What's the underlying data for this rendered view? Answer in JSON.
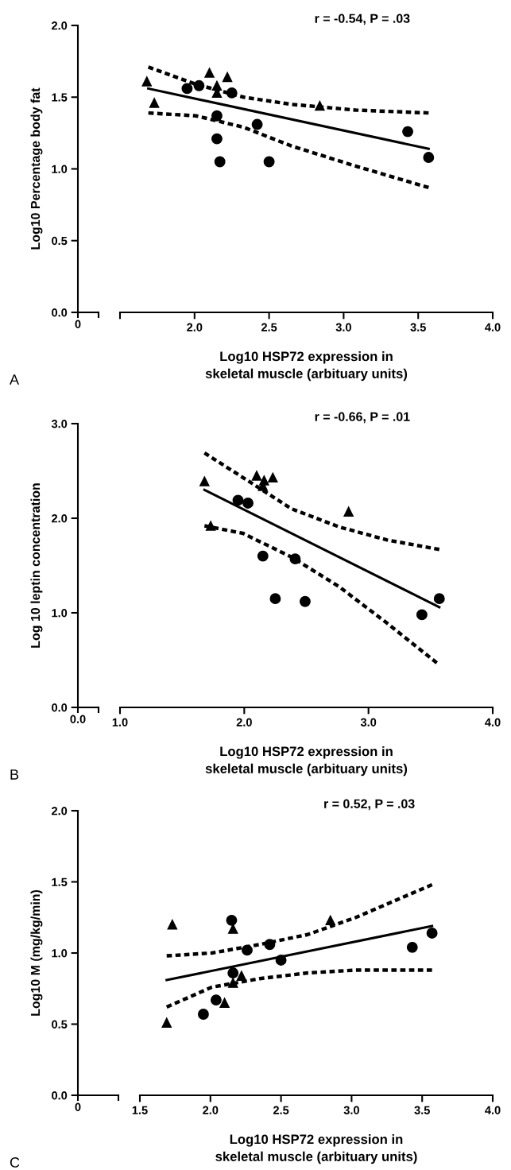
{
  "chart_data": [
    {
      "type": "scatter",
      "ylabel": "Log10 Percentage body fat",
      "xlabel": "Log10 HSP72 expression in\nskeletal muscle (arbituary units)",
      "annotations": [
        "r = -0.54, P = .03",
        "A",
        "0"
      ],
      "xlim": [
        1.5,
        4.0
      ],
      "xticks": [
        {
          "value": 1.5,
          "label": null
        },
        {
          "value": 2.0,
          "label": "2.0"
        },
        {
          "value": 2.5,
          "label": "2.5"
        },
        {
          "value": 3.0,
          "label": "3.0"
        },
        {
          "value": 3.5,
          "label": "3.5"
        },
        {
          "value": 4.0,
          "label": "4.0"
        }
      ],
      "ylim": [
        0,
        2.0
      ],
      "yticks": [
        {
          "value": 0,
          "label": "0.0"
        },
        {
          "value": 0.5,
          "label": "0.5"
        },
        {
          "value": 1.0,
          "label": "1.0"
        },
        {
          "value": 1.5,
          "label": "1.5"
        },
        {
          "value": 2.0,
          "label": "2.0"
        }
      ],
      "grid": false,
      "series": [
        {
          "marker": "triangle",
          "color": "#000000",
          "x": [
            1.68,
            1.73,
            2.1,
            2.22,
            2.15,
            2.15,
            2.84
          ],
          "values": [
            1.61,
            1.46,
            1.67,
            1.64,
            1.58,
            1.53,
            1.44
          ]
        },
        {
          "marker": "circle",
          "color": "#000000",
          "x": [
            1.95,
            2.03,
            2.25,
            2.15,
            2.15,
            2.17,
            2.42,
            2.5,
            3.43,
            3.57
          ],
          "values": [
            1.56,
            1.58,
            1.53,
            1.37,
            1.21,
            1.05,
            1.31,
            1.05,
            1.26,
            1.08
          ]
        },
        {
          "type": "line",
          "line_style": "solid",
          "color": "#000000",
          "x": [
            1.69,
            3.57
          ],
          "values": [
            1.56,
            1.14
          ]
        },
        {
          "type": "line",
          "line_style": "dashed",
          "color": "#000000",
          "x": [
            1.69,
            2.01,
            2.33,
            2.65,
            3.08,
            3.57
          ],
          "values": [
            1.71,
            1.59,
            1.5,
            1.45,
            1.41,
            1.39
          ]
        },
        {
          "type": "line",
          "line_style": "dashed",
          "color": "#000000",
          "x": [
            1.69,
            2.01,
            2.33,
            2.65,
            3.08,
            3.57
          ],
          "values": [
            1.39,
            1.37,
            1.29,
            1.16,
            1.02,
            0.87
          ]
        }
      ]
    },
    {
      "type": "scatter",
      "ylabel": "Log 10 leptin concentration",
      "xlabel": "Log10 HSP72 expression in\nskeletal muscle (arbituary units)",
      "annotations": [
        "r = -0.66, P = .01",
        "B",
        "0.0"
      ],
      "xlim": [
        1.0,
        4.0
      ],
      "xticks": [
        {
          "value": 1.0,
          "label": "1.0"
        },
        {
          "value": 2.0,
          "label": "2.0"
        },
        {
          "value": 3.0,
          "label": "3.0"
        },
        {
          "value": 4.0,
          "label": "4.0"
        }
      ],
      "ylim": [
        0,
        3.0
      ],
      "yticks": [
        {
          "value": 0,
          "label": "0.0"
        },
        {
          "value": 1.0,
          "label": "1.0"
        },
        {
          "value": 2.0,
          "label": "2.0"
        },
        {
          "value": 3.0,
          "label": "3.0"
        }
      ],
      "grid": false,
      "series": [
        {
          "marker": "triangle",
          "color": "#000000",
          "x": [
            1.68,
            1.73,
            2.1,
            2.16,
            2.15,
            2.23,
            2.84
          ],
          "values": [
            2.39,
            1.92,
            2.45,
            2.4,
            2.34,
            2.43,
            2.07
          ]
        },
        {
          "marker": "circle",
          "color": "#000000",
          "x": [
            1.95,
            2.03,
            2.15,
            2.41,
            2.25,
            2.49,
            3.43,
            3.57
          ],
          "values": [
            2.19,
            2.16,
            1.6,
            1.57,
            1.15,
            1.12,
            0.98,
            1.15
          ]
        },
        {
          "type": "line",
          "line_style": "solid",
          "color": "#000000",
          "x": [
            1.68,
            3.57
          ],
          "values": [
            2.3,
            1.06
          ]
        },
        {
          "type": "line",
          "line_style": "dashed",
          "color": "#000000",
          "x": [
            1.68,
            1.99,
            2.38,
            2.76,
            3.15,
            3.57
          ],
          "values": [
            2.69,
            2.43,
            2.1,
            1.91,
            1.77,
            1.67
          ]
        },
        {
          "type": "line",
          "line_style": "dashed",
          "color": "#000000",
          "x": [
            1.68,
            1.99,
            2.38,
            2.76,
            3.15,
            3.55
          ],
          "values": [
            1.92,
            1.84,
            1.59,
            1.28,
            0.89,
            0.47
          ]
        }
      ]
    },
    {
      "type": "scatter",
      "ylabel": "Log10 M (mg/kg/min)",
      "xlabel": "Log10 HSP72 expression in\nskeletal muscle (arbituary units)",
      "annotations": [
        "r = 0.52, P = .03",
        "C",
        "0"
      ],
      "xlim": [
        1.5,
        4.0
      ],
      "xticks": [
        {
          "value": 1.5,
          "label": "1.5"
        },
        {
          "value": 2.0,
          "label": "2.0"
        },
        {
          "value": 2.5,
          "label": "2.5"
        },
        {
          "value": 3.0,
          "label": "3.0"
        },
        {
          "value": 3.5,
          "label": "3.5"
        },
        {
          "value": 4.0,
          "label": "4.0"
        }
      ],
      "ylim": [
        0,
        2.0
      ],
      "yticks": [
        {
          "value": 0,
          "label": "0.0"
        },
        {
          "value": 0.5,
          "label": "0.5"
        },
        {
          "value": 1.0,
          "label": "1.0"
        },
        {
          "value": 1.5,
          "label": "1.5"
        },
        {
          "value": 2.0,
          "label": "2.0"
        }
      ],
      "grid": false,
      "series": [
        {
          "marker": "triangle",
          "color": "#000000",
          "x": [
            1.73,
            1.69,
            2.16,
            2.1,
            2.16,
            2.22,
            2.85
          ],
          "values": [
            1.2,
            0.51,
            1.17,
            0.65,
            0.79,
            0.84,
            1.23
          ]
        },
        {
          "marker": "circle",
          "color": "#000000",
          "x": [
            2.15,
            1.95,
            2.04,
            2.16,
            2.26,
            2.42,
            2.5,
            3.43,
            3.57
          ],
          "values": [
            1.23,
            0.57,
            0.67,
            0.86,
            1.02,
            1.06,
            0.95,
            1.04,
            1.14
          ]
        },
        {
          "type": "line",
          "line_style": "solid",
          "color": "#000000",
          "x": [
            1.69,
            3.57
          ],
          "values": [
            0.81,
            1.19
          ]
        },
        {
          "type": "line",
          "line_style": "dashed",
          "color": "#000000",
          "x": [
            1.69,
            2.01,
            2.35,
            2.69,
            3.03,
            3.57
          ],
          "values": [
            0.98,
            1.0,
            1.06,
            1.13,
            1.25,
            1.48
          ]
        },
        {
          "type": "line",
          "line_style": "dashed",
          "color": "#000000",
          "x": [
            1.69,
            2.01,
            2.35,
            2.69,
            3.03,
            3.57
          ],
          "values": [
            0.62,
            0.76,
            0.82,
            0.86,
            0.88,
            0.88
          ]
        }
      ]
    }
  ]
}
